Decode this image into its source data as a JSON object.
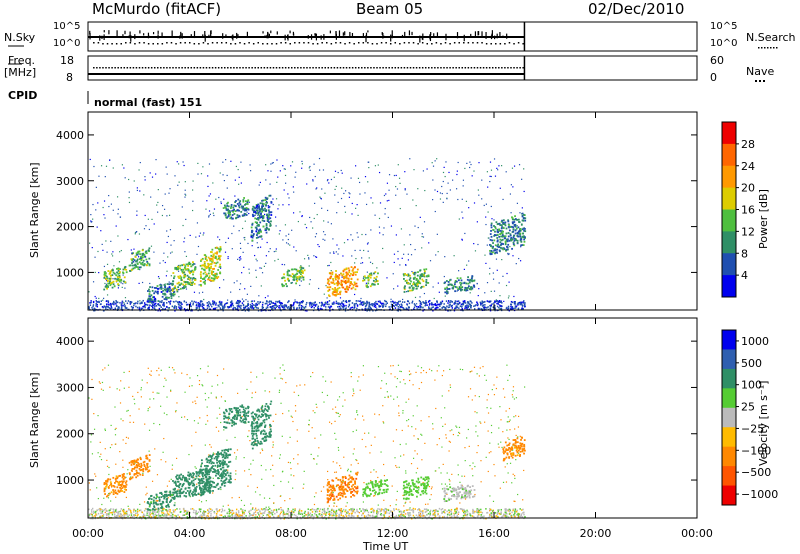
{
  "header": {
    "station": "McMurdo (fitACF)",
    "beam": "Beam 05",
    "date": "02/Dec/2010"
  },
  "panels": {
    "nsky_label": "N.Sky",
    "nsky_ticks": [
      "10^5",
      "10^0"
    ],
    "nsearch_label": "N.Search",
    "nsearch_ticks": [
      "10^5",
      "10^0"
    ],
    "freq_label": "Freq.",
    "freq_unit": "[MHz]",
    "freq_ticks": [
      "18",
      "8"
    ],
    "nave_label": "Nave",
    "nave_ticks": [
      "60",
      "0"
    ],
    "cpid_label": "CPID",
    "cpid_value": "normal (fast) 151"
  },
  "colors": {
    "power_scale": [
      "#0000ee",
      "#1f4fb0",
      "#2f8f66",
      "#4fbf3f",
      "#ddcc00",
      "#ff9900",
      "#ff6600",
      "#ee0000"
    ],
    "velocity_scale": [
      "#0000ee",
      "#2f5fb0",
      "#2f8f66",
      "#55cc33",
      "#bbbbbb",
      "#ffbb00",
      "#ff8800",
      "#ff5500",
      "#ee0000"
    ]
  },
  "chart_data": [
    {
      "type": "heatmap",
      "name": "power",
      "ylabel": "Slant Range [km]",
      "xlabel": "",
      "x_ticks": [
        "00:00",
        "04:00",
        "08:00",
        "12:00",
        "16:00",
        "20:00",
        "00:00"
      ],
      "y_ticks": [
        "1000",
        "2000",
        "3000",
        "4000"
      ],
      "xlim_hours": [
        0,
        24
      ],
      "ylim_km": [
        180,
        4500
      ],
      "colorbar_label": "Power [dB]",
      "colorbar_ticks": [
        "4",
        "8",
        "12",
        "16",
        "20",
        "24",
        "28"
      ],
      "colorbar_range": [
        0,
        32
      ],
      "data_end_hour": 17.2,
      "echo_regions": [
        {
          "t0": 0.6,
          "t1": 1.5,
          "r0": 700,
          "r1": 1100,
          "v": 14
        },
        {
          "t0": 1.6,
          "t1": 2.4,
          "r0": 1100,
          "r1": 1500,
          "v": 12
        },
        {
          "t0": 2.3,
          "t1": 3.4,
          "r0": 400,
          "r1": 750,
          "v": 8
        },
        {
          "t0": 3.3,
          "t1": 4.2,
          "r0": 650,
          "r1": 1200,
          "v": 14
        },
        {
          "t0": 4.4,
          "t1": 5.2,
          "r0": 800,
          "r1": 1500,
          "v": 17
        },
        {
          "t0": 5.3,
          "t1": 6.3,
          "r0": 2200,
          "r1": 2600,
          "v": 9
        },
        {
          "t0": 6.4,
          "t1": 7.2,
          "r0": 1800,
          "r1": 2600,
          "v": 8
        },
        {
          "t0": 7.6,
          "t1": 8.5,
          "r0": 750,
          "r1": 1100,
          "v": 13
        },
        {
          "t0": 9.4,
          "t1": 10.6,
          "r0": 550,
          "r1": 1100,
          "v": 22
        },
        {
          "t0": 10.8,
          "t1": 11.4,
          "r0": 700,
          "r1": 1000,
          "v": 14
        },
        {
          "t0": 12.4,
          "t1": 13.4,
          "r0": 650,
          "r1": 1050,
          "v": 13
        },
        {
          "t0": 14.0,
          "t1": 15.2,
          "r0": 600,
          "r1": 900,
          "v": 9
        },
        {
          "t0": 15.8,
          "t1": 17.2,
          "r0": 1500,
          "r1": 2200,
          "v": 9
        }
      ]
    },
    {
      "type": "heatmap",
      "name": "velocity",
      "ylabel": "Slant Range [km]",
      "xlabel": "Time UT",
      "x_ticks": [
        "00:00",
        "04:00",
        "08:00",
        "12:00",
        "16:00",
        "20:00",
        "00:00"
      ],
      "y_ticks": [
        "1000",
        "2000",
        "3000",
        "4000"
      ],
      "xlim_hours": [
        0,
        24
      ],
      "ylim_km": [
        180,
        4500
      ],
      "colorbar_label": "Velocity [m s⁻¹]",
      "colorbar_ticks": [
        "1000",
        "500",
        "100",
        "25",
        "−25",
        "−100",
        "−500",
        "−1000"
      ],
      "data_end_hour": 17.2,
      "echo_regions": [
        {
          "t0": 0.6,
          "t1": 1.5,
          "r0": 700,
          "r1": 1100,
          "v": -150
        },
        {
          "t0": 1.6,
          "t1": 2.4,
          "r0": 1100,
          "r1": 1500,
          "v": -200
        },
        {
          "t0": 2.3,
          "t1": 3.4,
          "r0": 400,
          "r1": 750,
          "v": 150
        },
        {
          "t0": 3.3,
          "t1": 4.8,
          "r0": 650,
          "r1": 1200,
          "v": 200
        },
        {
          "t0": 4.4,
          "t1": 5.6,
          "r0": 800,
          "r1": 1600,
          "v": 200
        },
        {
          "t0": 5.3,
          "t1": 6.3,
          "r0": 2200,
          "r1": 2600,
          "v": 200
        },
        {
          "t0": 6.4,
          "t1": 7.2,
          "r0": 1800,
          "r1": 2600,
          "v": 200
        },
        {
          "t0": 9.4,
          "t1": 10.6,
          "r0": 600,
          "r1": 1100,
          "v": -400
        },
        {
          "t0": 10.8,
          "t1": 11.8,
          "r0": 700,
          "r1": 1000,
          "v": 60
        },
        {
          "t0": 12.4,
          "t1": 13.4,
          "r0": 650,
          "r1": 1050,
          "v": 60
        },
        {
          "t0": 14.0,
          "t1": 15.2,
          "r0": 600,
          "r1": 900,
          "v": 20
        },
        {
          "t0": 16.3,
          "t1": 17.2,
          "r0": 1500,
          "r1": 1900,
          "v": -150
        }
      ]
    }
  ]
}
